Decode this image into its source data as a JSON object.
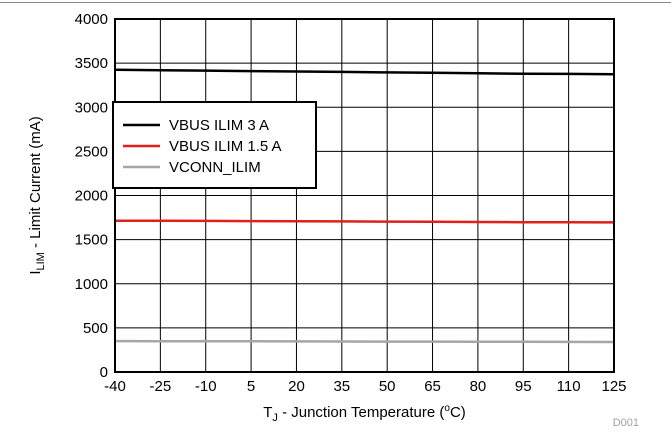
{
  "chart_data": {
    "type": "line",
    "title": "",
    "xlabel": {
      "main": "T",
      "sub": "J",
      "suffix": " - Junction Temperature (",
      "sup": "o",
      "end": "C)"
    },
    "ylabel": {
      "main": "I",
      "sub": "LIM",
      "suffix": " - Limit Current (mA)"
    },
    "xlim": [
      -40,
      125
    ],
    "ylim": [
      0,
      4000
    ],
    "xticks": [
      -40,
      -25,
      -10,
      5,
      20,
      35,
      50,
      65,
      80,
      95,
      110,
      125
    ],
    "yticks": [
      0,
      500,
      1000,
      1500,
      2000,
      2500,
      3000,
      3500,
      4000
    ],
    "grid": true,
    "legend_position": "upper-left",
    "series": [
      {
        "name": "VBUS ILIM 3 A",
        "color": "#000000",
        "x": [
          -40,
          -25,
          -10,
          5,
          20,
          35,
          50,
          65,
          80,
          95,
          110,
          125
        ],
        "y": [
          3425,
          3420,
          3415,
          3410,
          3405,
          3400,
          3395,
          3390,
          3385,
          3380,
          3378,
          3375
        ]
      },
      {
        "name": "VBUS ILIM 1.5 A",
        "color": "#e0201c",
        "x": [
          -40,
          -25,
          -10,
          5,
          20,
          35,
          50,
          65,
          80,
          95,
          110,
          125
        ],
        "y": [
          1715,
          1714,
          1712,
          1710,
          1708,
          1706,
          1704,
          1702,
          1700,
          1698,
          1696,
          1695
        ]
      },
      {
        "name": "VCONN_ILIM",
        "color": "#a6a6a6",
        "x": [
          -40,
          -25,
          -10,
          5,
          20,
          35,
          50,
          65,
          80,
          95,
          110,
          125
        ],
        "y": [
          350,
          349,
          348,
          348,
          347,
          346,
          345,
          344,
          343,
          342,
          341,
          340
        ]
      }
    ]
  },
  "figure_code": "D001"
}
